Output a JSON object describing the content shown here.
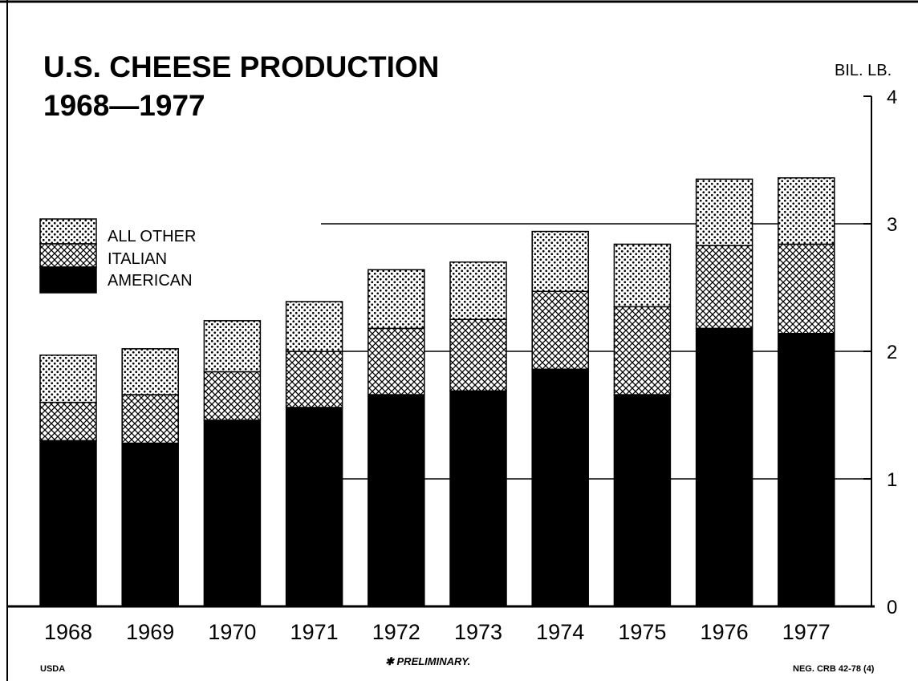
{
  "chart_data": {
    "type": "bar",
    "stacked": true,
    "title": "U.S. CHEESE PRODUCTION",
    "subtitle": "1968—1977",
    "unit_label": "BIL. LB.",
    "categories": [
      "1968",
      "1969",
      "1970",
      "1971",
      "1972",
      "1973",
      "1974",
      "1975",
      "1976",
      "1977"
    ],
    "series": [
      {
        "name": "AMERICAN",
        "values": [
          1.3,
          1.28,
          1.46,
          1.56,
          1.66,
          1.69,
          1.86,
          1.66,
          2.18,
          2.14
        ]
      },
      {
        "name": "ITALIAN",
        "values": [
          0.3,
          0.38,
          0.38,
          0.44,
          0.52,
          0.56,
          0.61,
          0.69,
          0.65,
          0.7
        ]
      },
      {
        "name": "ALL OTHER",
        "values": [
          0.37,
          0.36,
          0.4,
          0.39,
          0.46,
          0.45,
          0.47,
          0.49,
          0.52,
          0.52
        ]
      }
    ],
    "ylim": [
      0,
      4
    ],
    "yticks": [
      0,
      1,
      2,
      3,
      4
    ],
    "y_axis_position": "right",
    "grid": true,
    "legend_position": "left",
    "footnote": "✱ PRELIMINARY.",
    "source": "USDA",
    "reference": "NEG. CRB 42-78 (4)"
  },
  "colors": {
    "background": "#ffffff",
    "american": "#000000",
    "ink": "#000000"
  }
}
